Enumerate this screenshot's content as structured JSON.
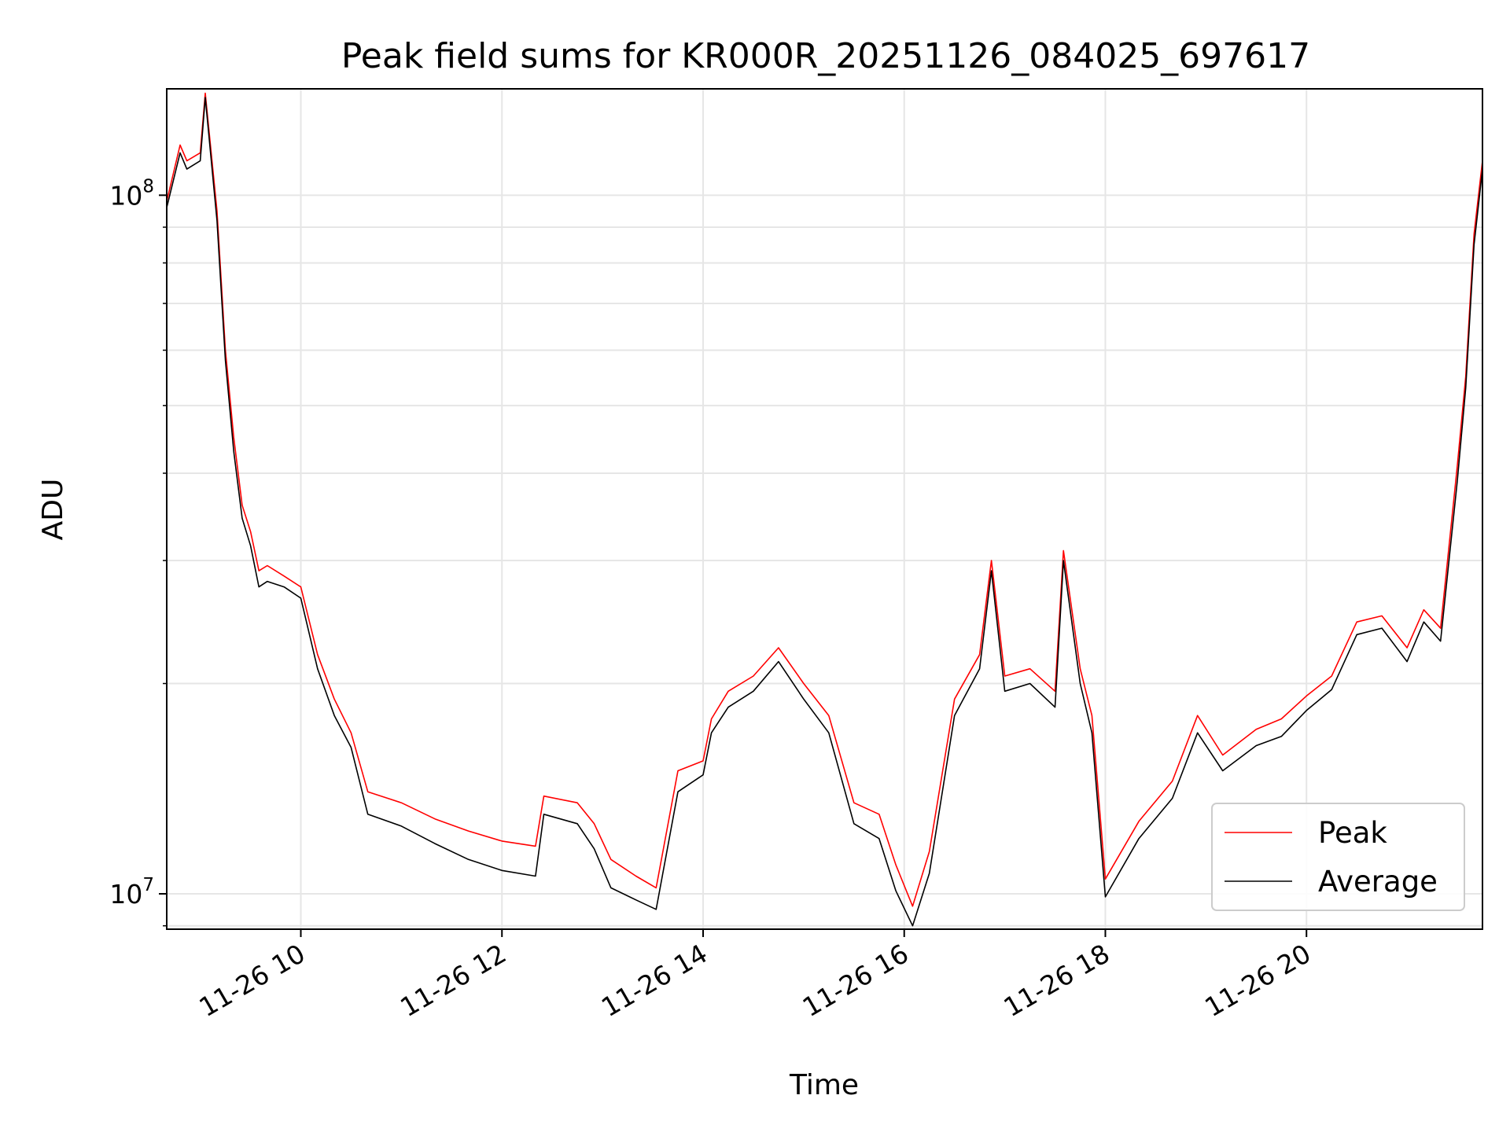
{
  "chart_data": {
    "type": "line",
    "title": "Peak field sums for KR000R_20251126_084025_697617",
    "xlabel": "Time",
    "ylabel": "ADU",
    "yscale": "log",
    "xlim": [
      "11-26 08:40",
      "11-26 21:45"
    ],
    "ylim": [
      8900000,
      142000000
    ],
    "x_ticks": [
      {
        "label": "11-26 10",
        "value": "11-26 10:00"
      },
      {
        "label": "11-26 12",
        "value": "11-26 12:00"
      },
      {
        "label": "11-26 14",
        "value": "11-26 14:00"
      },
      {
        "label": "11-26 16",
        "value": "11-26 16:00"
      },
      {
        "label": "11-26 18",
        "value": "11-26 18:00"
      },
      {
        "label": "11-26 20",
        "value": "11-26 20:00"
      }
    ],
    "y_ticks": [
      {
        "label": "10",
        "exp": "7",
        "value": 10000000
      },
      {
        "label": "10",
        "exp": "8",
        "value": 100000000
      }
    ],
    "grid": true,
    "legend_position": "lower-right",
    "colors": {
      "Peak": "#ff0000",
      "Average": "#000000"
    },
    "x": [
      "11-26 08:40",
      "11-26 08:48",
      "11-26 08:52",
      "11-26 09:00",
      "11-26 09:03",
      "11-26 09:10",
      "11-26 09:15",
      "11-26 09:20",
      "11-26 09:25",
      "11-26 09:30",
      "11-26 09:35",
      "11-26 09:40",
      "11-26 09:50",
      "11-26 10:00",
      "11-26 10:10",
      "11-26 10:20",
      "11-26 10:30",
      "11-26 10:40",
      "11-26 11:00",
      "11-26 11:20",
      "11-26 11:40",
      "11-26 12:00",
      "11-26 12:20",
      "11-26 12:25",
      "11-26 12:45",
      "11-26 12:55",
      "11-26 13:05",
      "11-26 13:20",
      "11-26 13:32",
      "11-26 13:45",
      "11-26 14:00",
      "11-26 14:05",
      "11-26 14:15",
      "11-26 14:30",
      "11-26 14:45",
      "11-26 15:00",
      "11-26 15:15",
      "11-26 15:30",
      "11-26 15:45",
      "11-26 15:55",
      "11-26 16:05",
      "11-26 16:15",
      "11-26 16:30",
      "11-26 16:45",
      "11-26 16:52",
      "11-26 17:00",
      "11-26 17:15",
      "11-26 17:30",
      "11-26 17:35",
      "11-26 17:45",
      "11-26 17:52",
      "11-26 18:00",
      "11-26 18:20",
      "11-26 18:40",
      "11-26 18:55",
      "11-26 19:10",
      "11-26 19:30",
      "11-26 19:45",
      "11-26 20:00",
      "11-26 20:15",
      "11-26 20:30",
      "11-26 20:45",
      "11-26 21:00",
      "11-26 21:10",
      "11-26 21:20",
      "11-26 21:30",
      "11-26 21:35",
      "11-26 21:40",
      "11-26 21:45"
    ],
    "series": [
      {
        "name": "Peak",
        "values": [
          98000000,
          118000000,
          112000000,
          115000000,
          140000000,
          95000000,
          60000000,
          45000000,
          36000000,
          33000000,
          29000000,
          29500000,
          28500000,
          27500000,
          22000000,
          19000000,
          17000000,
          14000000,
          13500000,
          12800000,
          12300000,
          11900000,
          11700000,
          13800000,
          13500000,
          12600000,
          11200000,
          10600000,
          10200000,
          15000000,
          15500000,
          17800000,
          19500000,
          20500000,
          22500000,
          20000000,
          18000000,
          13500000,
          13000000,
          11000000,
          9600000,
          11500000,
          19000000,
          22000000,
          30000000,
          20500000,
          21000000,
          19500000,
          31000000,
          21000000,
          18000000,
          10500000,
          12700000,
          14500000,
          18000000,
          15800000,
          17200000,
          17800000,
          19200000,
          20500000,
          24500000,
          25000000,
          22500000,
          25500000,
          24000000,
          41000000,
          55000000,
          88000000,
          112000000
        ]
      },
      {
        "name": "Average",
        "values": [
          96000000,
          115000000,
          109000000,
          112000000,
          138000000,
          92000000,
          58000000,
          43000000,
          34500000,
          31500000,
          27500000,
          28000000,
          27500000,
          26500000,
          21000000,
          18000000,
          16200000,
          13000000,
          12500000,
          11800000,
          11200000,
          10800000,
          10600000,
          13000000,
          12600000,
          11600000,
          10200000,
          9800000,
          9500000,
          14000000,
          14800000,
          17000000,
          18500000,
          19500000,
          21500000,
          19000000,
          17000000,
          12600000,
          12000000,
          10100000,
          9000000,
          10700000,
          18000000,
          21000000,
          29000000,
          19500000,
          20000000,
          18500000,
          30000000,
          20000000,
          17000000,
          9900000,
          12000000,
          13700000,
          17000000,
          15000000,
          16300000,
          16800000,
          18300000,
          19600000,
          23500000,
          24000000,
          21500000,
          24500000,
          23000000,
          39000000,
          53000000,
          85000000,
          109000000
        ]
      }
    ]
  }
}
